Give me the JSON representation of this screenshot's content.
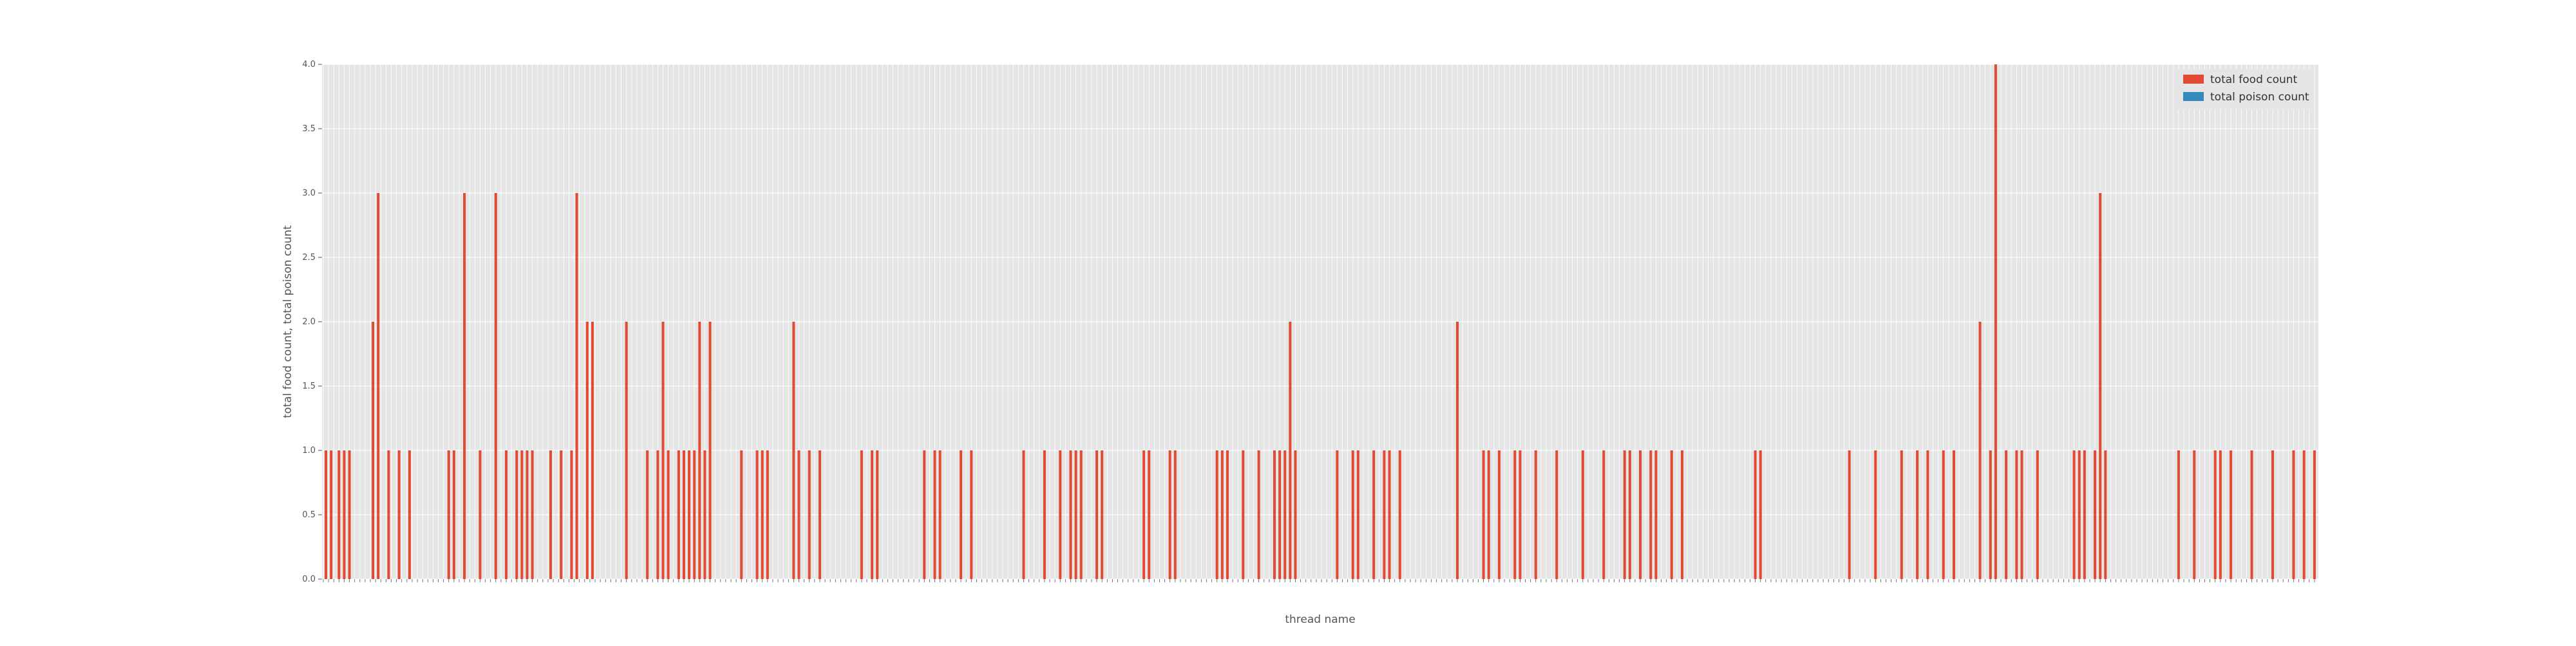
{
  "chart_data": {
    "type": "bar",
    "xlabel": "thread name",
    "ylabel": "total food count, total poison count",
    "ylim": [
      0,
      4
    ],
    "yticks": [
      "0.0",
      "0.5",
      "1.0",
      "1.5",
      "2.0",
      "2.5",
      "3.0",
      "3.5",
      "4.0"
    ],
    "grid": true,
    "legend_position": "top-right",
    "series": [
      {
        "name": "total food count",
        "color": "#e24a33",
        "values": [
          0,
          1,
          0,
          1,
          0,
          0,
          1,
          0,
          1,
          0,
          1,
          0,
          0,
          0,
          0,
          0,
          0,
          0,
          0,
          2,
          0,
          3,
          0,
          0,
          0,
          1,
          0,
          0,
          0,
          1,
          0,
          0,
          0,
          1,
          0,
          0,
          0,
          0,
          0,
          0,
          0,
          0,
          0,
          0,
          0,
          0,
          0,
          0,
          1,
          0,
          1,
          0,
          0,
          0,
          3,
          0,
          0,
          0,
          0,
          0,
          1,
          0,
          0,
          0,
          0,
          0,
          3,
          0,
          0,
          0,
          1,
          0,
          0,
          0,
          1,
          0,
          1,
          0,
          1,
          0,
          1,
          0,
          0,
          0,
          0,
          0,
          0,
          1,
          0,
          0,
          0,
          1,
          0,
          0,
          0,
          1,
          0,
          3,
          0,
          0,
          0,
          2,
          0,
          2,
          0,
          0,
          0,
          0,
          0,
          0,
          0,
          0,
          0,
          0,
          0,
          0,
          2,
          0,
          0,
          0,
          0,
          0,
          0,
          0,
          1,
          0,
          0,
          0,
          1,
          0,
          2,
          0,
          1,
          0,
          0,
          0,
          1,
          0,
          1,
          0,
          1,
          0,
          1,
          0,
          2,
          0,
          1,
          0,
          2,
          0,
          0,
          0,
          0,
          0,
          0,
          0,
          0,
          0,
          0,
          0,
          1,
          0,
          0,
          0,
          0,
          0,
          1,
          0,
          1,
          0,
          1,
          0,
          0,
          0,
          0,
          0,
          0,
          0,
          0,
          0,
          2,
          0,
          1,
          0,
          0,
          0,
          1,
          0,
          0,
          0,
          1,
          0,
          0,
          0,
          0,
          0,
          0,
          0,
          0,
          0,
          0,
          0,
          0,
          0,
          0,
          0,
          1,
          0,
          0,
          0,
          1,
          0,
          1,
          0,
          0,
          0,
          0,
          0,
          0,
          0,
          0,
          0,
          0,
          0,
          0,
          0,
          0,
          0,
          0,
          0,
          1,
          0,
          0,
          0,
          1,
          0,
          1,
          0,
          0,
          0,
          0,
          0,
          0,
          0,
          1,
          0,
          0,
          0,
          1,
          0,
          0,
          0,
          0,
          0,
          0,
          0,
          0,
          0,
          0,
          0,
          0,
          0,
          0,
          0,
          0,
          0,
          0,
          0,
          1,
          0,
          0,
          0,
          0,
          0,
          0,
          0,
          1,
          0,
          0,
          0,
          0,
          0,
          1,
          0,
          0,
          0,
          1,
          0,
          1,
          0,
          1,
          0,
          0,
          0,
          0,
          0,
          1,
          0,
          1,
          0,
          0,
          0,
          0,
          0,
          0,
          0,
          0,
          0,
          0,
          0,
          0,
          0,
          0,
          0,
          1,
          0,
          1,
          0,
          0,
          0,
          0,
          0,
          0,
          0,
          1,
          0,
          1,
          0,
          0,
          0,
          0,
          0,
          0,
          0,
          0,
          0,
          0,
          0,
          0,
          0,
          0,
          0,
          1,
          0,
          1,
          0,
          1,
          0,
          0,
          0,
          0,
          0,
          1,
          0,
          0,
          0,
          0,
          0,
          1,
          0,
          0,
          0,
          0,
          0,
          1,
          0,
          1,
          0,
          1,
          0,
          2,
          0,
          1,
          0,
          0,
          0,
          0,
          0,
          0,
          0,
          0,
          0,
          0,
          0,
          0,
          0,
          0,
          0,
          1,
          0,
          0,
          0,
          0,
          0,
          1,
          0,
          1,
          0,
          0,
          0,
          0,
          0,
          1,
          0,
          0,
          0,
          1,
          0,
          1,
          0,
          0,
          0,
          1,
          0,
          0,
          0,
          0,
          0,
          0,
          0,
          0,
          0,
          0,
          0,
          0,
          0,
          0,
          0,
          0,
          0,
          0,
          0,
          0,
          0,
          2,
          0,
          0,
          0,
          0,
          0,
          0,
          0,
          0,
          0,
          1,
          0,
          1,
          0,
          0,
          0,
          1,
          0,
          0,
          0,
          0,
          0,
          1,
          0,
          1,
          0,
          0,
          0,
          0,
          0,
          1,
          0,
          0,
          0,
          0,
          0,
          0,
          0,
          1,
          0,
          0,
          0,
          0,
          0,
          0,
          0,
          0,
          0,
          1,
          0,
          0,
          0,
          0,
          0,
          0,
          0,
          1,
          0,
          0,
          0,
          0,
          0,
          0,
          0,
          1,
          0,
          1,
          0,
          0,
          0,
          1,
          0,
          0,
          0,
          1,
          0,
          1,
          0,
          0,
          0,
          0,
          0,
          1,
          0,
          0,
          0,
          1,
          0,
          0,
          0,
          0,
          0,
          0,
          0,
          0,
          0,
          0,
          0,
          0,
          0,
          0,
          0,
          0,
          0,
          0,
          0,
          0,
          0,
          0,
          0,
          0,
          0,
          0,
          0,
          1,
          0,
          1,
          0,
          0,
          0,
          0,
          0,
          0,
          0,
          0,
          0,
          0,
          0,
          0,
          0,
          0,
          0,
          0,
          0,
          0,
          0,
          0,
          0,
          0,
          0,
          0,
          0,
          0,
          0,
          0,
          0,
          0,
          0,
          0,
          0,
          1,
          0,
          0,
          0,
          0,
          0,
          0,
          0,
          0,
          0,
          1,
          0,
          0,
          0,
          0,
          0,
          0,
          0,
          0,
          0,
          1,
          0,
          0,
          0,
          0,
          0,
          1,
          0,
          0,
          0,
          1,
          0,
          0,
          0,
          0,
          0,
          1,
          0,
          0,
          0,
          1,
          0,
          0,
          0,
          0,
          0,
          0,
          0,
          0,
          0,
          2,
          0,
          0,
          0,
          1,
          0,
          4,
          0,
          0,
          0,
          1,
          0,
          0,
          0,
          1,
          0,
          1,
          0,
          0,
          0,
          0,
          0,
          1,
          0,
          0,
          0,
          0,
          0,
          0,
          0,
          0,
          0,
          0,
          0,
          0,
          0,
          1,
          0,
          1,
          0,
          1,
          0,
          0,
          0,
          1,
          0,
          3,
          0,
          1,
          0,
          0,
          0,
          0,
          0,
          0,
          0,
          0,
          0,
          0,
          0,
          0,
          0,
          0,
          0,
          0,
          0,
          0,
          0,
          0,
          0,
          0,
          0,
          0,
          0,
          0,
          0,
          1,
          0,
          0,
          0,
          0,
          0,
          1,
          0,
          0,
          0,
          0,
          0,
          0,
          0,
          1,
          0,
          1,
          0,
          0,
          0,
          1,
          0,
          0,
          0,
          0,
          0,
          0,
          0,
          1,
          0,
          0,
          0,
          0,
          0,
          0,
          0,
          1,
          0,
          0,
          0,
          0,
          0,
          0,
          0,
          1,
          0,
          0,
          0,
          1,
          0,
          0,
          0,
          1,
          0
        ]
      },
      {
        "name": "total poison count",
        "color": "#348abd",
        "values": []
      }
    ]
  }
}
